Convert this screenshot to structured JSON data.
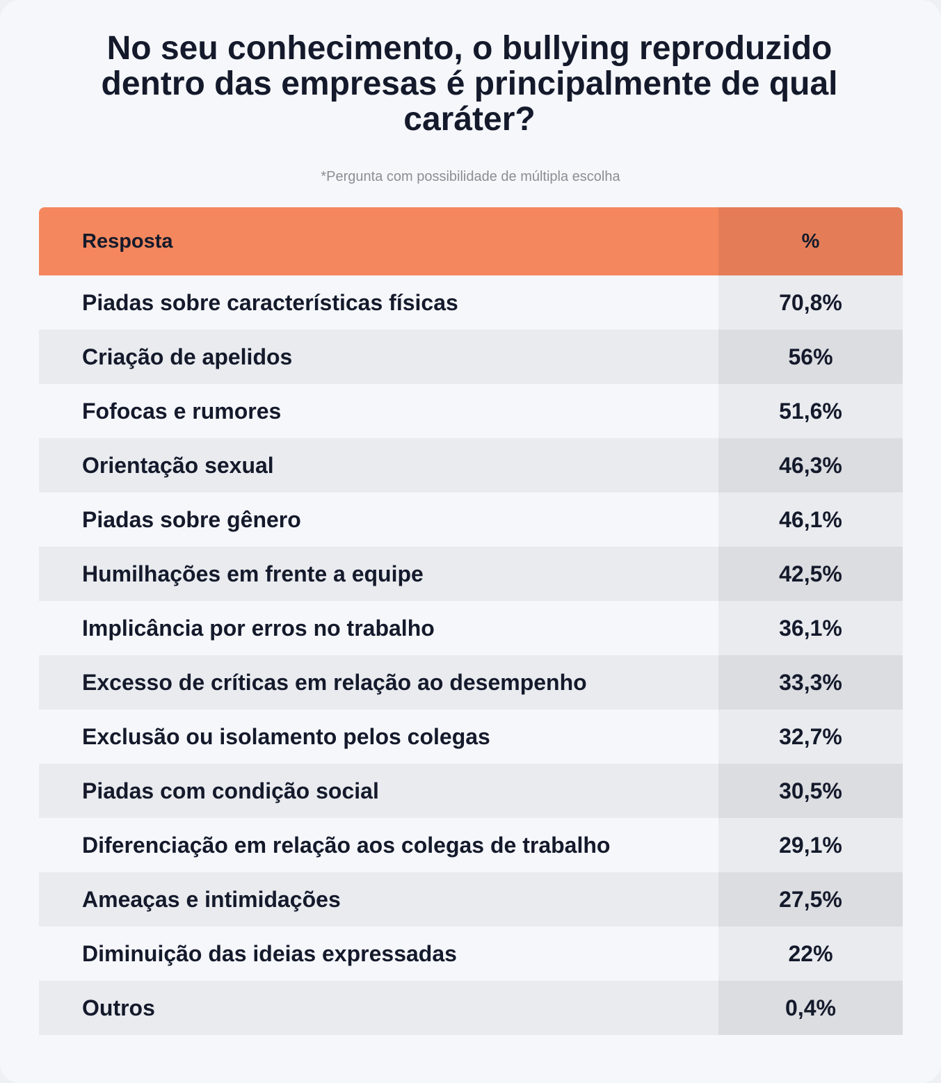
{
  "title": "No seu conhecimento, o bullying reproduzido dentro das empresas é principalmente de qual caráter?",
  "subtitle": "*Pergunta com possibilidade de múltipla escolha",
  "table": {
    "header_response": "Resposta",
    "header_percent": "%"
  },
  "chart_data": {
    "type": "table",
    "title": "No seu conhecimento, o bullying reproduzido dentro das empresas é principalmente de qual caráter?",
    "columns": [
      "Resposta",
      "%"
    ],
    "rows": [
      {
        "label": "Piadas sobre características físicas",
        "value": 70.8,
        "display": "70,8%"
      },
      {
        "label": "Criação de apelidos",
        "value": 56,
        "display": "56%"
      },
      {
        "label": "Fofocas e rumores",
        "value": 51.6,
        "display": "51,6%"
      },
      {
        "label": "Orientação sexual",
        "value": 46.3,
        "display": "46,3%"
      },
      {
        "label": "Piadas sobre gênero",
        "value": 46.1,
        "display": "46,1%"
      },
      {
        "label": "Humilhações em frente a equipe",
        "value": 42.5,
        "display": "42,5%"
      },
      {
        "label": "Implicância por erros no trabalho",
        "value": 36.1,
        "display": "36,1%"
      },
      {
        "label": "Excesso de críticas em relação ao desempenho",
        "value": 33.3,
        "display": "33,3%"
      },
      {
        "label": "Exclusão ou isolamento pelos colegas",
        "value": 32.7,
        "display": "32,7%"
      },
      {
        "label": "Piadas com condição social",
        "value": 30.5,
        "display": "30,5%"
      },
      {
        "label": "Diferenciação em relação aos colegas de trabalho",
        "value": 29.1,
        "display": "29,1%"
      },
      {
        "label": "Ameaças e intimidações",
        "value": 27.5,
        "display": "27,5%"
      },
      {
        "label": "Diminuição das ideias expressadas",
        "value": 22,
        "display": "22%"
      },
      {
        "label": "Outros",
        "value": 0.4,
        "display": "0,4%"
      }
    ]
  }
}
